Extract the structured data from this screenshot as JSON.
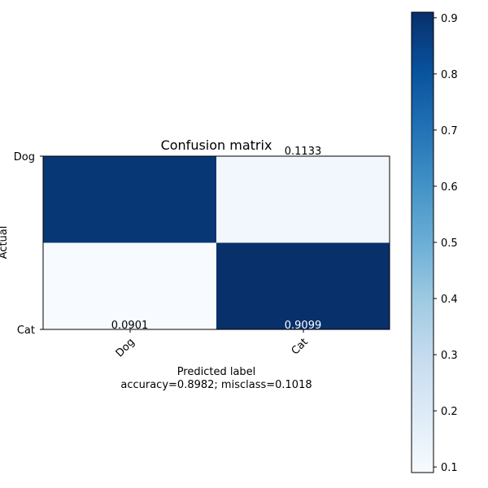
{
  "chart_data": {
    "type": "heatmap",
    "title": "Confusion matrix",
    "xlabel": "Predicted label",
    "xlabel_sub": "accuracy=0.8982; misclass=0.1018",
    "ylabel": "Actual",
    "x_categories": [
      "Dog",
      "Cat"
    ],
    "y_categories": [
      "Dog",
      "Cat"
    ],
    "values": [
      [
        0.8867,
        0.1133
      ],
      [
        0.0901,
        0.9099
      ]
    ],
    "cell_labels": [
      [
        "",
        "0.1133"
      ],
      [
        "0.0901",
        "0.9099"
      ]
    ],
    "colormap": "Blues",
    "colorbar": {
      "range": [
        0.0901,
        0.9099
      ],
      "ticks": [
        0.1,
        0.2,
        0.3,
        0.4,
        0.5,
        0.6,
        0.7,
        0.8,
        0.9
      ],
      "tick_labels": [
        "0.1",
        "0.2",
        "0.3",
        "0.4",
        "0.5",
        "0.6",
        "0.7",
        "0.8",
        "0.9"
      ]
    },
    "grid": false
  },
  "colors": {
    "low": "#f7fbff",
    "high": "#08306b",
    "text_dark": "#000000",
    "text_light": "#ffffff"
  }
}
